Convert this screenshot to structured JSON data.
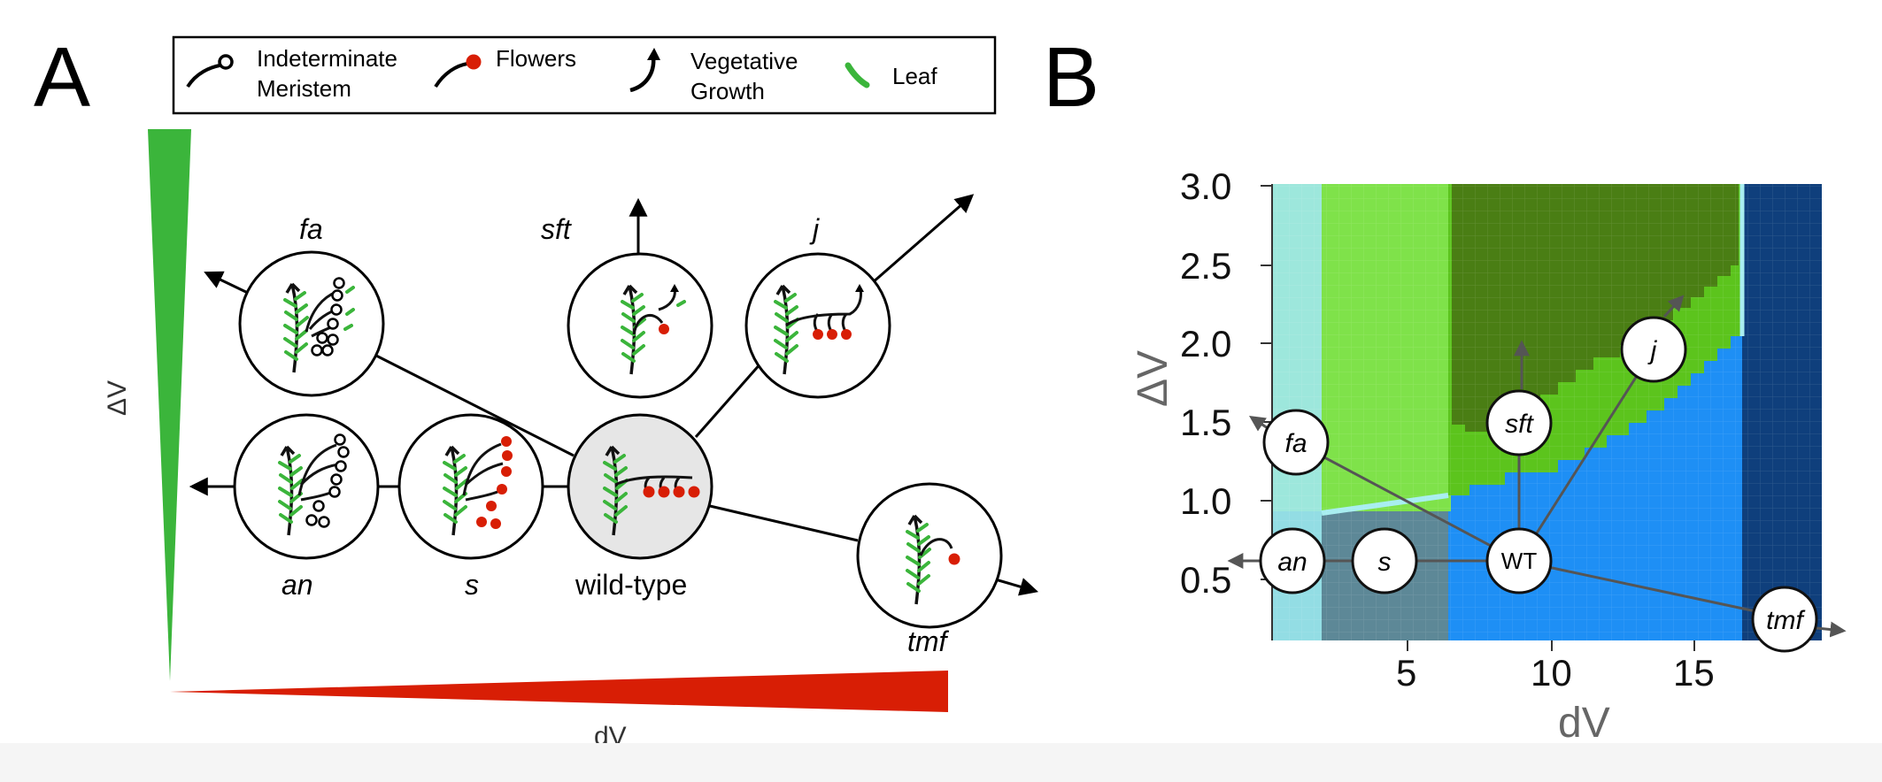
{
  "panels": {
    "a_label": "A",
    "b_label": "B"
  },
  "legend": {
    "items": [
      {
        "line1": "Indeterminate",
        "line2": "Meristem",
        "icon": "indeterminate-meristem-icon"
      },
      {
        "line1": "Flowers",
        "line2": "",
        "icon": "flower-icon"
      },
      {
        "line1": "Vegetative",
        "line2": "Growth",
        "icon": "vegetative-growth-arrow-icon"
      },
      {
        "line1": "Leaf",
        "line2": "",
        "icon": "leaf-icon"
      }
    ]
  },
  "panel_a": {
    "y_axis_label": "ΔV",
    "x_axis_label": "dV",
    "y_gradient_color": "#3bb53b",
    "x_gradient_color": "#d81e05",
    "mutants": {
      "fa": "fa",
      "sft": "sft",
      "j": "j",
      "an": "an",
      "s": "s",
      "wt": "wild-type",
      "tmf": "tmf"
    }
  },
  "panel_b": {
    "x_title": "dV",
    "y_title": "ΔV",
    "x_ticks": [
      "5",
      "10",
      "15"
    ],
    "y_ticks": [
      "3.0",
      "2.5",
      "2.0",
      "1.5",
      "1.0",
      "0.5"
    ],
    "region_colors": {
      "light_cyan": "#9de7dc",
      "light_green": "#7fe24a",
      "green": "#5cc41d",
      "dark_green": "#4a7e14",
      "blue": "#1e8ff5",
      "dark_blue": "#0f3f7c",
      "grey_blue": "#5d8897",
      "pale_cyan": "#93dde4"
    },
    "nodes": {
      "fa": "fa",
      "sft": "sft",
      "j": "j",
      "an": "an",
      "s": "s",
      "wt": "WT",
      "tmf": "tmf"
    }
  },
  "chart_data": {
    "type": "heatmap",
    "xlabel": "dV",
    "ylabel": "ΔV",
    "xlim": [
      0,
      20
    ],
    "ylim": [
      0.1,
      3.0
    ],
    "x_ticks": [
      5,
      10,
      15
    ],
    "y_ticks": [
      0.5,
      1.0,
      1.5,
      2.0,
      2.5,
      3.0
    ],
    "points": [
      {
        "label": "fa",
        "x": 0.9,
        "y": 1.38
      },
      {
        "label": "sft",
        "x": 8.9,
        "y": 1.48
      },
      {
        "label": "j",
        "x": 13.8,
        "y": 1.85
      },
      {
        "label": "an",
        "x": 0.8,
        "y": 0.49
      },
      {
        "label": "s",
        "x": 4.0,
        "y": 0.49
      },
      {
        "label": "WT",
        "x": 8.9,
        "y": 0.49
      },
      {
        "label": "tmf",
        "x": 18.3,
        "y": 0.22
      }
    ]
  }
}
